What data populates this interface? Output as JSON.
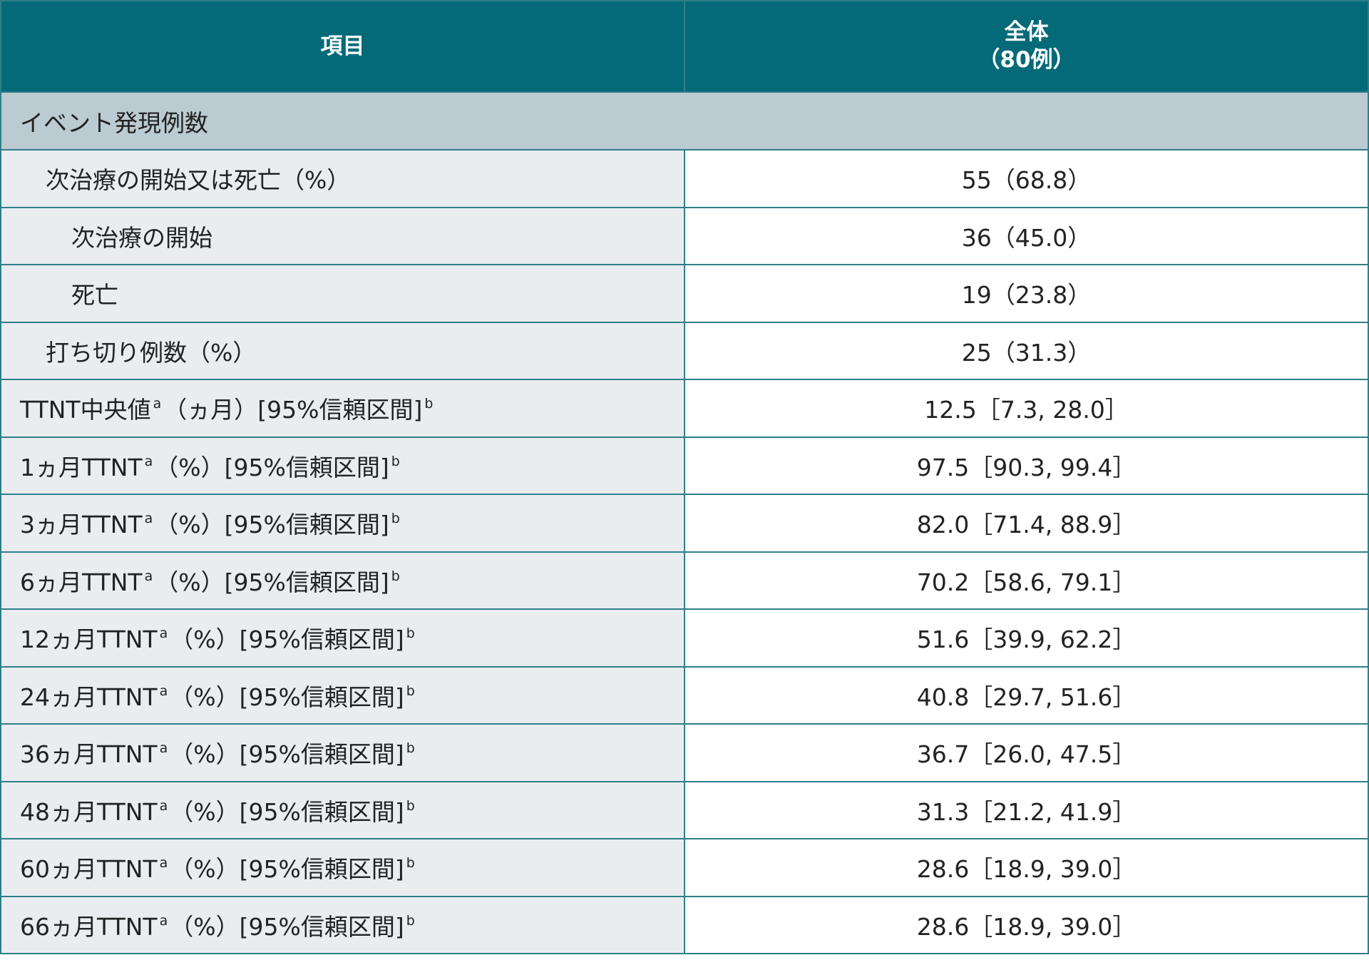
{
  "header": {
    "item": "項目",
    "overall": [
      "全体",
      "（80例）"
    ]
  },
  "section": "イベント発現例数",
  "rows": [
    {
      "label": [
        "次治療の開始又は死亡（%）"
      ],
      "value": "55（68.8）"
    },
    {
      "label": [
        "次治療の開始"
      ],
      "value": "36（45.0）"
    },
    {
      "label": [
        "死亡"
      ],
      "value": "19（23.8）"
    },
    {
      "label": [
        "打ち切り例数（%）"
      ],
      "value": "25（31.3）"
    },
    {
      "label": [
        "TTNT中央値",
        "a",
        "（ヵ月）[95%信頼区間]",
        "b"
      ],
      "value": "12.5［7.3, 28.0］"
    },
    {
      "label": [
        "1ヵ月TTNT",
        "a",
        "（%）[95%信頼区間]",
        "b"
      ],
      "value": "97.5［90.3, 99.4］"
    },
    {
      "label": [
        "3ヵ月TTNT",
        "a",
        "（%）[95%信頼区間]",
        "b"
      ],
      "value": "82.0［71.4, 88.9］"
    },
    {
      "label": [
        "6ヵ月TTNT",
        "a",
        "（%）[95%信頼区間]",
        "b"
      ],
      "value": "70.2［58.6, 79.1］"
    },
    {
      "label": [
        "12ヵ月TTNT",
        "a",
        "（%）[95%信頼区間]",
        "b"
      ],
      "value": "51.6［39.9, 62.2］"
    },
    {
      "label": [
        "24ヵ月TTNT",
        "a",
        "（%）[95%信頼区間]",
        "b"
      ],
      "value": "40.8［29.7, 51.6］"
    },
    {
      "label": [
        "36ヵ月TTNT",
        "a",
        "（%）[95%信頼区間]",
        "b"
      ],
      "value": "36.7［26.0, 47.5］"
    },
    {
      "label": [
        "48ヵ月TTNT",
        "a",
        "（%）[95%信頼区間]",
        "b"
      ],
      "value": "31.3［21.2, 41.9］"
    },
    {
      "label": [
        "60ヵ月TTNT",
        "a",
        "（%）[95%信頼区間]",
        "b"
      ],
      "value": "28.6［18.9, 39.0］"
    },
    {
      "label": [
        "66ヵ月TTNT",
        "a",
        "（%）[95%信頼区間]",
        "b"
      ],
      "value": "28.6［18.9, 39.0］"
    }
  ]
}
